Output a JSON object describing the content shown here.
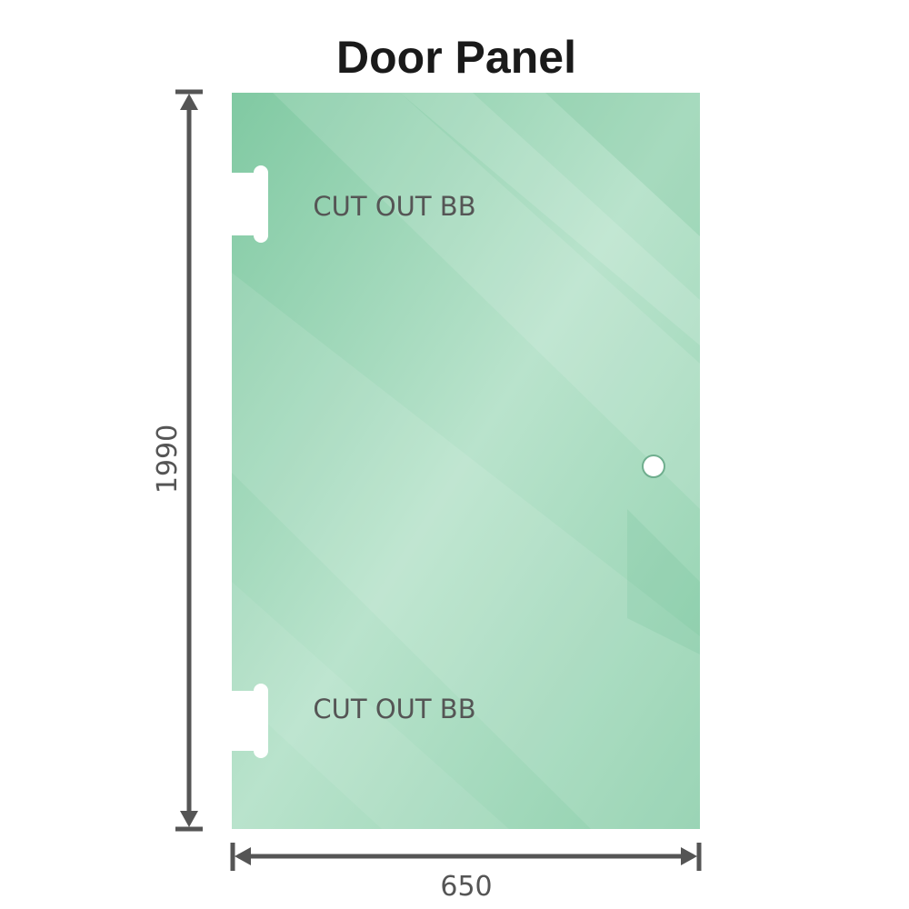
{
  "title": "Door Panel",
  "dimensions": {
    "height": "1990",
    "width": "650"
  },
  "cutouts": [
    {
      "label": "CUT OUT BB"
    },
    {
      "label": "CUT OUT BB"
    }
  ],
  "colors": {
    "glass": "#86cca6",
    "glass_light": "#bde5d0",
    "dimension_line": "#555555"
  }
}
